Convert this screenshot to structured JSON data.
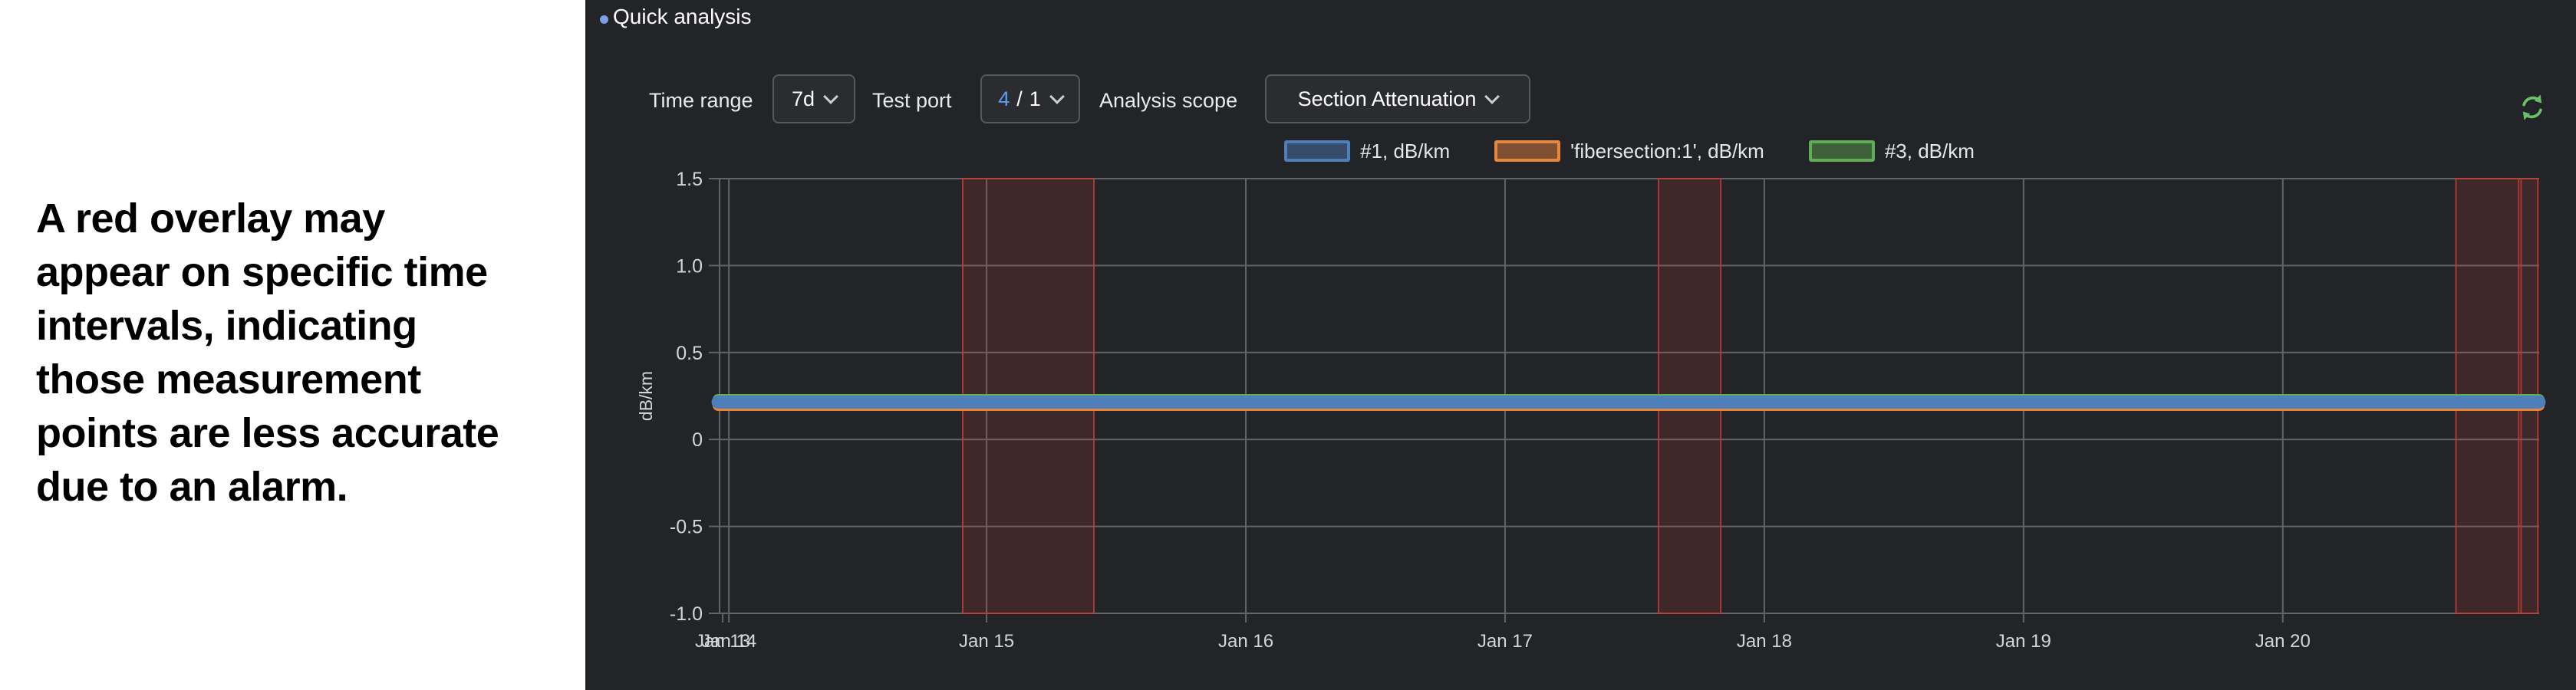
{
  "annotation": {
    "lines": [
      "A red overlay may",
      "appear on specific time",
      "intervals, indicating",
      "those measurement",
      "points are less accurate",
      "due to an alarm."
    ]
  },
  "panel": {
    "title": "Quick analysis",
    "accent_dot_color": "#7aa0e8",
    "accent_color": "#5d9bf6",
    "refresh_icon_color": "#6abf69",
    "controls": {
      "time_range_label": "Time range",
      "time_range_value": "7d",
      "test_port_label": "Test port",
      "test_port_value_primary": "4",
      "test_port_value_separator": "/",
      "test_port_value_secondary": "1",
      "analysis_scope_label": "Analysis scope",
      "analysis_scope_value": "Section Attenuation"
    }
  },
  "chart_data": {
    "type": "line",
    "ylabel": "dB/km",
    "ylim": [
      -1.0,
      1.5
    ],
    "y_ticks": [
      {
        "v": 1.5,
        "label": "1.5"
      },
      {
        "v": 1.0,
        "label": "1.0"
      },
      {
        "v": 0.5,
        "label": "0.5"
      },
      {
        "v": 0.0,
        "label": "0"
      },
      {
        "v": -0.5,
        "label": "-0.5"
      },
      {
        "v": -1.0,
        "label": "-1.0"
      }
    ],
    "xlim_day_of_january": [
      13.97,
      20.989
    ],
    "x_ticks": [
      {
        "label": "Jan 13",
        "day": 13.982,
        "grid": false
      },
      {
        "label": "Jan 14",
        "day": 14.006,
        "grid": true
      },
      {
        "label": "Jan 15",
        "day": 15,
        "grid": true
      },
      {
        "label": "Jan 16",
        "day": 16,
        "grid": true
      },
      {
        "label": "Jan 17",
        "day": 17,
        "grid": true
      },
      {
        "label": "Jan 18",
        "day": 18,
        "grid": true
      },
      {
        "label": "Jan 19",
        "day": 19,
        "grid": true
      },
      {
        "label": "Jan 20",
        "day": 20,
        "grid": true
      }
    ],
    "series": [
      {
        "name": "#1, dB/km",
        "color": "#4e7fbb",
        "value": 0.215
      },
      {
        "name": "'fibersection:1', dB/km",
        "color": "#e8873c",
        "value": 0.195
      },
      {
        "name": "#3, dB/km",
        "color": "#5fae55",
        "value": 0.23
      }
    ],
    "alarm_overlays": [
      {
        "start_day": 14.908,
        "end_day": 15.414
      },
      {
        "start_day": 17.592,
        "end_day": 17.832
      },
      {
        "start_day": 20.668,
        "end_day": 20.91
      },
      {
        "start_day": 20.919,
        "end_day": 20.984
      }
    ],
    "alarm_color": "#c03c36",
    "grid": true,
    "legend_position": "top"
  }
}
